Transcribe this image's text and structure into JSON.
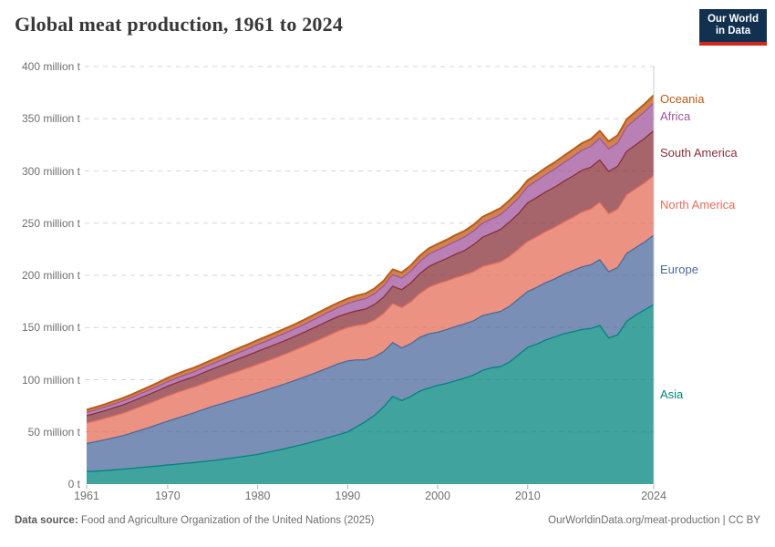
{
  "logo": {
    "line1": "Our World",
    "line2": "in Data",
    "navy_color": "#12304F",
    "red_color": "#CE2A21"
  },
  "footer": {
    "source_label": "Data source:",
    "source_text": " Food and Agriculture Organization of the United Nations (2025)",
    "link_text": "OurWorldinData.org/meat-production | CC BY"
  },
  "chart_data": {
    "type": "area",
    "stacked": true,
    "title": "Global meat production, 1961 to 2024",
    "unit": "million t",
    "x_start": 1961,
    "x_end": 2024,
    "x_ticks": [
      1961,
      1970,
      1980,
      1990,
      2000,
      2010,
      2024
    ],
    "ylim": [
      0,
      400
    ],
    "y_ticks": [
      {
        "value": 0,
        "label": "0 t"
      },
      {
        "value": 50,
        "label": "50 million t"
      },
      {
        "value": 100,
        "label": "100 million t"
      },
      {
        "value": 150,
        "label": "150 million t"
      },
      {
        "value": 200,
        "label": "200 million t"
      },
      {
        "value": 250,
        "label": "250 million t"
      },
      {
        "value": 300,
        "label": "300 million t"
      },
      {
        "value": 350,
        "label": "350 million t"
      },
      {
        "value": 400,
        "label": "400 million t"
      }
    ],
    "grid": "dashed",
    "legend_position": "right",
    "series": [
      {
        "name": "Asia",
        "color": "#00847E",
        "values": [
          12.0,
          12.4,
          13.0,
          13.6,
          14.3,
          15.0,
          15.8,
          16.6,
          17.4,
          18.3,
          19.1,
          19.9,
          20.7,
          21.6,
          22.5,
          23.6,
          24.8,
          26.0,
          27.2,
          28.5,
          30.2,
          32.0,
          33.9,
          35.9,
          38.0,
          40.2,
          42.5,
          44.9,
          47.4,
          50.0,
          55.0,
          60.0,
          66.0,
          74.0,
          84.0,
          80.0,
          84.0,
          89.0,
          92.0,
          94.5,
          96.5,
          99.0,
          101.5,
          104.5,
          109.0,
          111.5,
          112.5,
          117.0,
          124.0,
          131.0,
          134.0,
          138.0,
          141.0,
          144.0,
          146.0,
          148.0,
          149.0,
          152.0,
          140.0,
          143.0,
          156.0,
          162.0,
          167.0,
          172.0
        ]
      },
      {
        "name": "Europe",
        "color": "#4C6A9C",
        "values": [
          27.0,
          28.2,
          29.4,
          30.7,
          32.0,
          33.9,
          35.8,
          37.8,
          39.9,
          42.0,
          43.9,
          45.8,
          47.8,
          49.9,
          52.0,
          53.4,
          54.8,
          56.2,
          57.6,
          59.0,
          60.0,
          61.0,
          62.0,
          63.0,
          64.0,
          65.0,
          66.0,
          67.0,
          68.0,
          68.0,
          64.0,
          59.0,
          56.0,
          53.0,
          51.5,
          50.5,
          50.5,
          51.5,
          52.0,
          51.0,
          51.5,
          52.0,
          52.0,
          52.0,
          52.5,
          52.0,
          53.0,
          53.5,
          53.5,
          53.5,
          54.5,
          55.0,
          55.5,
          57.0,
          58.5,
          60.0,
          61.0,
          63.0,
          63.5,
          64.5,
          65.0,
          64.5,
          65.0,
          66.5
        ]
      },
      {
        "name": "North America",
        "color": "#E56E5A",
        "values": [
          19.5,
          20.0,
          20.5,
          21.0,
          21.5,
          22.0,
          22.6,
          23.1,
          23.6,
          24.2,
          24.6,
          24.8,
          24.6,
          24.9,
          25.0,
          25.6,
          26.0,
          26.4,
          26.8,
          27.2,
          27.6,
          28.0,
          28.5,
          29.0,
          29.5,
          30.0,
          30.5,
          31.0,
          31.5,
          32.0,
          33.0,
          34.2,
          35.2,
          36.5,
          37.5,
          38.5,
          40.0,
          42.0,
          44.5,
          46.5,
          46.6,
          46.8,
          46.9,
          47.0,
          47.0,
          47.2,
          47.5,
          47.8,
          47.8,
          48.0,
          48.5,
          49.0,
          49.5,
          50.0,
          51.0,
          52.5,
          53.5,
          55.0,
          55.5,
          56.0,
          56.3,
          56.5,
          56.8,
          57.0
        ]
      },
      {
        "name": "South America",
        "color": "#883039",
        "values": [
          7.0,
          7.2,
          7.4,
          7.7,
          8.0,
          8.2,
          8.5,
          8.7,
          9.0,
          9.3,
          9.5,
          9.7,
          10.0,
          10.4,
          10.8,
          11.1,
          11.5,
          11.8,
          12.1,
          12.5,
          12.7,
          12.9,
          13.0,
          13.1,
          13.3,
          13.6,
          13.8,
          14.0,
          13.8,
          13.5,
          14.0,
          14.5,
          15.0,
          15.7,
          16.5,
          17.2,
          18.0,
          19.0,
          19.8,
          20.5,
          21.5,
          22.5,
          23.5,
          26.0,
          28.0,
          29.5,
          31.0,
          33.0,
          34.0,
          37.0,
          37.5,
          38.0,
          38.5,
          39.0,
          39.5,
          40.0,
          40.0,
          40.5,
          40.5,
          41.0,
          41.5,
          42.0,
          42.5,
          43.0
        ]
      },
      {
        "name": "Africa",
        "color": "#A2559C",
        "values": [
          3.2,
          3.3,
          3.4,
          3.6,
          3.7,
          3.8,
          3.9,
          4.0,
          4.1,
          4.3,
          4.4,
          4.6,
          4.7,
          4.9,
          5.0,
          5.2,
          5.5,
          5.8,
          6.1,
          6.4,
          6.6,
          6.9,
          7.1,
          7.3,
          7.5,
          7.8,
          8.1,
          8.4,
          8.7,
          9.5,
          9.8,
          10.0,
          10.3,
          10.6,
          11.0,
          11.2,
          11.4,
          11.6,
          11.8,
          11.8,
          12.1,
          12.4,
          12.8,
          13.1,
          13.5,
          13.8,
          14.2,
          14.6,
          15.0,
          15.5,
          16.0,
          16.5,
          17.2,
          17.8,
          18.5,
          19.2,
          20.0,
          20.8,
          21.6,
          22.4,
          23.5,
          24.5,
          25.5,
          26.5
        ]
      },
      {
        "name": "Oceania",
        "color": "#BE5915",
        "values": [
          2.5,
          2.6,
          2.7,
          2.8,
          2.9,
          3.0,
          3.1,
          3.3,
          3.5,
          3.7,
          3.9,
          4.0,
          3.9,
          3.8,
          4.0,
          4.1,
          4.3,
          4.4,
          4.3,
          4.4,
          4.4,
          4.3,
          4.4,
          4.3,
          4.4,
          4.5,
          4.6,
          4.5,
          4.6,
          4.7,
          4.8,
          4.9,
          5.0,
          5.1,
          5.2,
          5.3,
          5.5,
          5.6,
          5.7,
          5.8,
          5.9,
          6.0,
          6.0,
          6.0,
          6.1,
          6.2,
          6.3,
          6.2,
          6.3,
          6.2,
          6.3,
          6.5,
          6.6,
          6.7,
          6.9,
          6.8,
          7.0,
          7.1,
          7.2,
          7.3,
          7.2,
          7.4,
          7.5,
          7.6
        ]
      }
    ]
  }
}
